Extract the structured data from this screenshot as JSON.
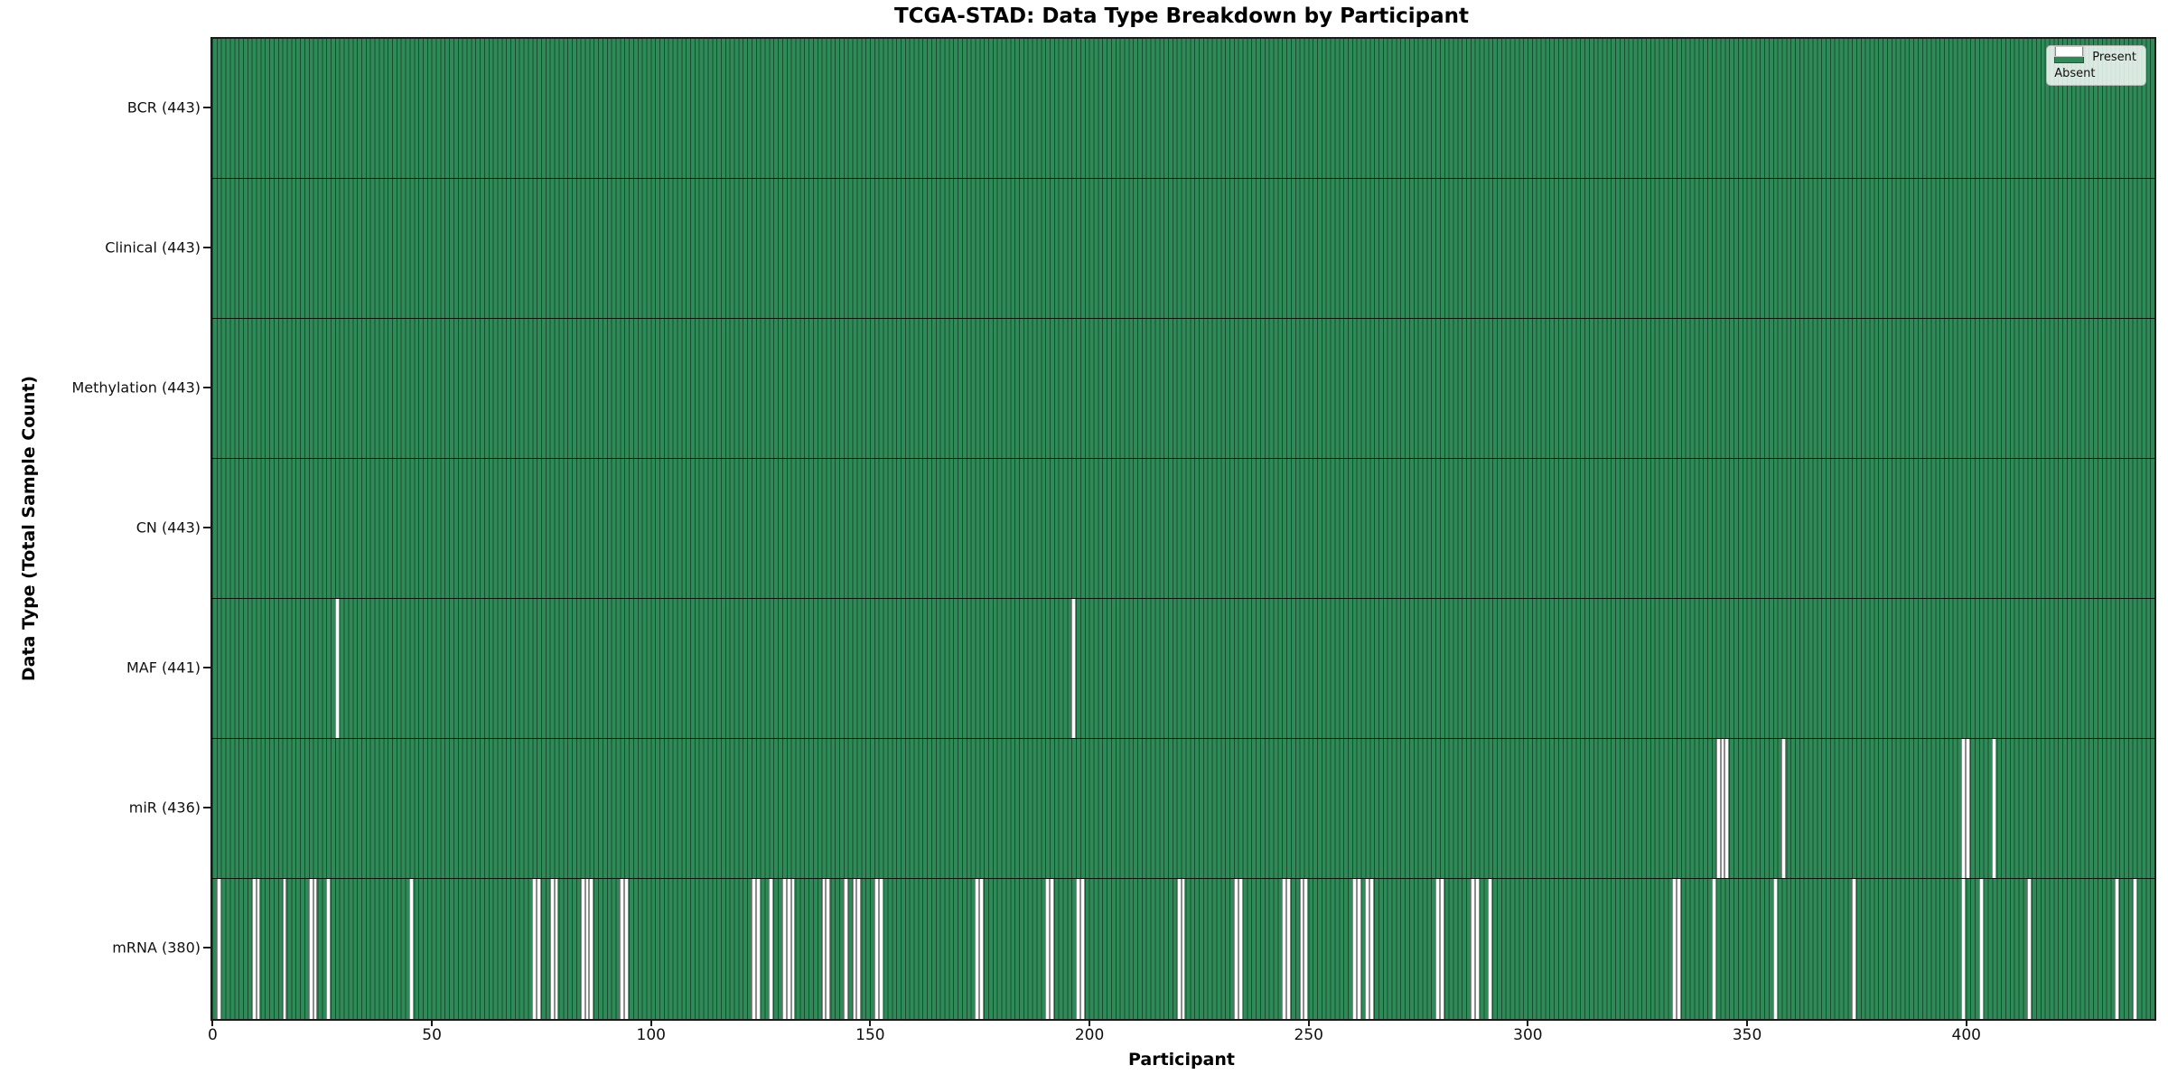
{
  "chart_data": {
    "type": "heatmap",
    "title": "TCGA-STAD: Data Type Breakdown by Participant",
    "xlabel": "Participant",
    "ylabel": "Data Type (Total Sample Count)",
    "n_participants": 443,
    "x_ticks": [
      0,
      50,
      100,
      150,
      200,
      250,
      300,
      350,
      400
    ],
    "grid": false,
    "legend_position": "upper right",
    "colors": {
      "present": "#2e8b57",
      "absent": "#ffffff",
      "bar_edge": "rgba(0,0,0,0.45)",
      "axis": "#1a1a1a"
    },
    "legend": [
      {
        "label": "Present",
        "swatch": "present"
      },
      {
        "label": "Absent",
        "swatch": "absent"
      }
    ],
    "rows": [
      {
        "name": "bcr",
        "label": "BCR (443)",
        "count": 443,
        "missing": []
      },
      {
        "name": "clinical",
        "label": "Clinical (443)",
        "count": 443,
        "missing": []
      },
      {
        "name": "methylation",
        "label": "Methylation (443)",
        "count": 443,
        "missing": []
      },
      {
        "name": "cn",
        "label": "CN (443)",
        "count": 443,
        "missing": []
      },
      {
        "name": "maf",
        "label": "MAF (441)",
        "count": 441,
        "missing": [
          28,
          196
        ]
      },
      {
        "name": "mir",
        "label": "miR (436)",
        "count": 436,
        "missing": [
          343,
          344,
          345,
          358,
          399,
          400,
          406
        ]
      },
      {
        "name": "mrna",
        "label": "mRNA (380)",
        "count": 380,
        "missing": [
          1,
          9,
          10,
          16,
          22,
          23,
          26,
          45,
          73,
          74,
          77,
          78,
          84,
          85,
          86,
          93,
          94,
          123,
          124,
          127,
          130,
          131,
          132,
          139,
          140,
          144,
          146,
          147,
          151,
          152,
          174,
          175,
          190,
          191,
          197,
          198,
          220,
          221,
          233,
          234,
          244,
          245,
          248,
          249,
          260,
          261,
          263,
          264,
          279,
          280,
          287,
          288,
          291,
          333,
          334,
          342,
          356,
          374,
          399,
          403,
          414,
          434,
          438
        ]
      }
    ]
  }
}
